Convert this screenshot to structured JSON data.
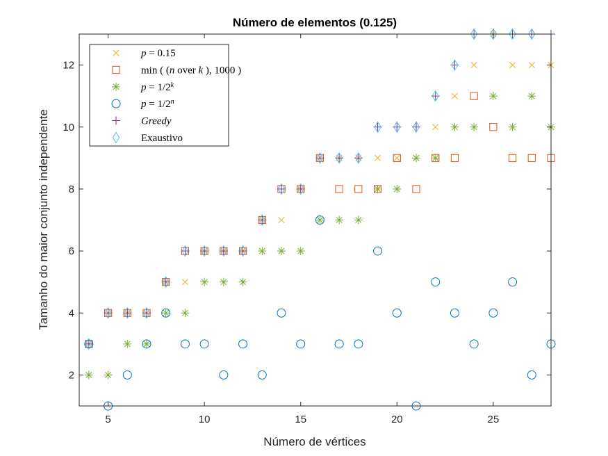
{
  "chart_data": {
    "type": "scatter",
    "title": "Número de elementos (0.125)",
    "xlabel": "Número de vértices",
    "ylabel": "Tamanho do maior conjunto independente",
    "xlim": [
      3.5,
      28
    ],
    "ylim": [
      1,
      13
    ],
    "xticks": [
      5,
      10,
      15,
      20,
      25
    ],
    "yticks": [
      2,
      4,
      6,
      8,
      10,
      12
    ],
    "grid": false,
    "legend_position": "top-left",
    "series": [
      {
        "name": "p = 0.15",
        "marker": "x-icon",
        "color": "#EDB120",
        "x": [
          4,
          5,
          6,
          7,
          8,
          9,
          10,
          11,
          12,
          13,
          14,
          15,
          16,
          17,
          18,
          19,
          20,
          21,
          22,
          23,
          24,
          25,
          26,
          27,
          28
        ],
        "y": [
          3,
          4,
          4,
          4,
          5,
          5,
          6,
          6,
          6,
          7,
          7,
          8,
          9,
          9,
          9,
          9,
          9,
          9,
          10,
          11,
          12,
          13,
          12,
          12,
          12
        ]
      },
      {
        "name": "min(C(n,k), 1000)",
        "marker": "square-icon",
        "color": "#D95319",
        "x": [
          4,
          5,
          6,
          7,
          8,
          9,
          10,
          11,
          12,
          13,
          14,
          15,
          16,
          17,
          18,
          19,
          20,
          21,
          22,
          23,
          24,
          25,
          26,
          27,
          28
        ],
        "y": [
          3,
          4,
          4,
          4,
          5,
          6,
          6,
          6,
          6,
          7,
          8,
          8,
          9,
          8,
          8,
          8,
          9,
          8,
          9,
          9,
          11,
          10,
          9,
          9,
          9
        ]
      },
      {
        "name": "p = 1/2^k",
        "marker": "asterisk-icon",
        "color": "#77AC30",
        "x": [
          4,
          5,
          6,
          7,
          8,
          9,
          10,
          11,
          12,
          13,
          14,
          15,
          16,
          17,
          18,
          19,
          20,
          21,
          22,
          23,
          24,
          25,
          26,
          27,
          28
        ],
        "y": [
          2,
          2,
          3,
          3,
          4,
          4,
          5,
          5,
          5,
          6,
          6,
          6,
          7,
          7,
          7,
          8,
          8,
          9,
          9,
          10,
          10,
          11,
          10,
          11,
          10
        ]
      },
      {
        "name": "p = 1/2^n",
        "marker": "circle-icon",
        "color": "#0072BD",
        "x": [
          4,
          5,
          6,
          7,
          8,
          9,
          10,
          11,
          12,
          13,
          14,
          15,
          16,
          17,
          18,
          19,
          20,
          21,
          22,
          23,
          24,
          25,
          26,
          27,
          28
        ],
        "y": [
          3,
          1,
          2,
          3,
          4,
          3,
          3,
          2,
          3,
          2,
          4,
          3,
          7,
          3,
          3,
          6,
          4,
          1,
          5,
          4,
          3,
          4,
          5,
          2,
          3
        ]
      },
      {
        "name": "Greedy",
        "marker": "plus-icon",
        "color": "#7E2F8E",
        "x": [
          4,
          5,
          6,
          7,
          8,
          9,
          10,
          11,
          12,
          13,
          14,
          15,
          16,
          17,
          18,
          19,
          20,
          21,
          22,
          23,
          24,
          25,
          26,
          27,
          28
        ],
        "y": [
          3,
          4,
          4,
          4,
          5,
          6,
          6,
          6,
          6,
          7,
          8,
          8,
          9,
          9,
          9,
          10,
          10,
          10,
          11,
          12,
          13,
          13,
          13,
          13,
          13
        ]
      },
      {
        "name": "Exaustivo",
        "marker": "diamond-icon",
        "color": "#4DBEEE",
        "x": [
          4,
          5,
          6,
          7,
          8,
          9,
          10,
          11,
          12,
          13,
          14,
          15,
          16,
          17,
          18,
          19,
          20,
          21,
          22,
          23,
          24,
          25,
          26,
          27
        ],
        "y": [
          3,
          4,
          4,
          4,
          5,
          6,
          6,
          6,
          6,
          7,
          8,
          8,
          9,
          9,
          9,
          10,
          10,
          10,
          11,
          12,
          13,
          13,
          13,
          13
        ]
      }
    ]
  },
  "legend": {
    "items": [
      {
        "marker": "x-icon",
        "color": "#EDB120",
        "parts": [
          {
            "t": "p",
            "i": true
          },
          {
            "t": " = 0.15"
          }
        ]
      },
      {
        "marker": "square-icon",
        "color": "#D95319",
        "parts": [
          {
            "t": "min ( ("
          },
          {
            "t": "n",
            "i": true
          },
          {
            "t": " over "
          },
          {
            "t": "k",
            "i": true
          },
          {
            "t": " ), 1000 )"
          }
        ]
      },
      {
        "marker": "asterisk-icon",
        "color": "#77AC30",
        "parts": [
          {
            "t": "p",
            "i": true
          },
          {
            "t": " = 1/2"
          },
          {
            "t": "k",
            "i": true,
            "sup": true
          }
        ]
      },
      {
        "marker": "circle-icon",
        "color": "#0072BD",
        "parts": [
          {
            "t": "p",
            "i": true
          },
          {
            "t": " = 1/2"
          },
          {
            "t": "n",
            "i": true,
            "sup": true
          }
        ]
      },
      {
        "marker": "plus-icon",
        "color": "#7E2F8E",
        "parts": [
          {
            "t": "Greedy",
            "i": true
          }
        ]
      },
      {
        "marker": "diamond-icon",
        "color": "#4DBEEE",
        "parts": [
          {
            "t": "Exaustivo"
          }
        ]
      }
    ]
  }
}
